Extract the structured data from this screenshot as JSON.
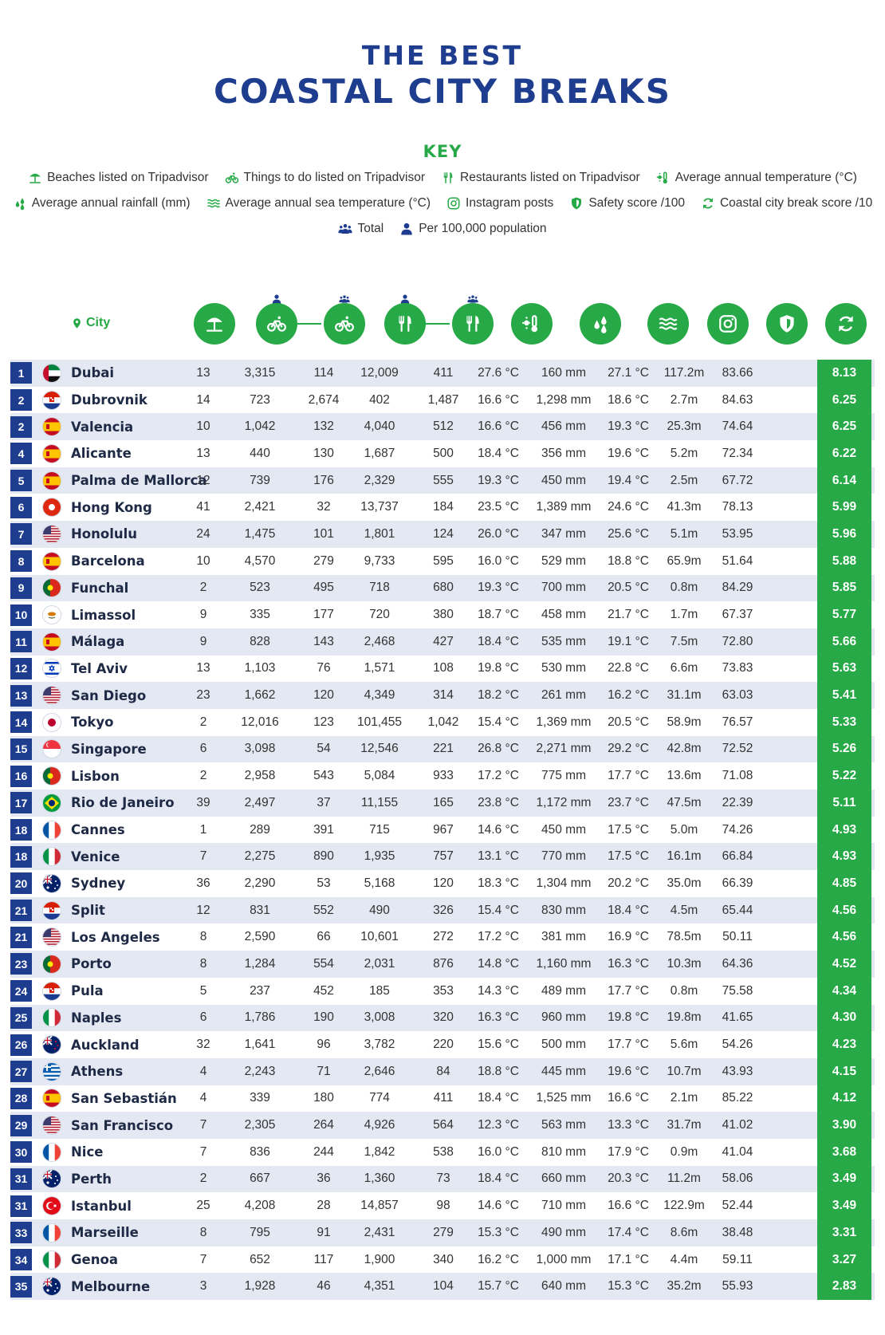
{
  "title": {
    "line1": "THE BEST",
    "line2": "COASTAL CITY BREAKS"
  },
  "key": {
    "title": "KEY",
    "items": [
      {
        "icon": "beach-umbrella-icon",
        "label": "Beaches listed on Tripadvisor"
      },
      {
        "icon": "bicycle-icon",
        "label": "Things to do listed on Tripadvisor"
      },
      {
        "icon": "cutlery-icon",
        "label": "Restaurants listed on Tripadvisor"
      },
      {
        "icon": "thermometer-sun-icon",
        "label": "Average annual temperature (°C)"
      },
      {
        "icon": "raindrops-icon",
        "label": "Average annual rainfall (mm)"
      },
      {
        "icon": "waves-icon",
        "label": "Average annual sea temperature (°C)"
      },
      {
        "icon": "instagram-icon",
        "label": "Instagram posts"
      },
      {
        "icon": "shield-icon",
        "label": "Safety score /100"
      },
      {
        "icon": "refresh-icon",
        "label": "Coastal city break score /10"
      },
      {
        "icon": "group-icon",
        "label": "Total"
      },
      {
        "icon": "person-icon",
        "label": "Per 100,000 population"
      }
    ]
  },
  "header": {
    "city_label": "City"
  },
  "colors": {
    "brand_blue": "#1e3d8f",
    "accent_green": "#26a946",
    "row_alt": "#e3e8f2"
  },
  "rows": [
    {
      "rank": "1",
      "flag": "uae",
      "city": "Dubai",
      "beaches": "13",
      "todo_pc": "3,315",
      "todo_total": "114",
      "rest_pc": "12,009",
      "rest_total": "411",
      "temp": "27.6 °C",
      "rain": "160 mm",
      "sea": "27.1 °C",
      "insta": "117.2m",
      "safety": "83.66",
      "score": "8.13"
    },
    {
      "rank": "2",
      "flag": "croatia",
      "city": "Dubrovnik",
      "beaches": "14",
      "todo_pc": "723",
      "todo_total": "2,674",
      "rest_pc": "402",
      "rest_total": "1,487",
      "temp": "16.6 °C",
      "rain": "1,298 mm",
      "sea": "18.6 °C",
      "insta": "2.7m",
      "safety": "84.63",
      "score": "6.25"
    },
    {
      "rank": "2",
      "flag": "spain",
      "city": "Valencia",
      "beaches": "10",
      "todo_pc": "1,042",
      "todo_total": "132",
      "rest_pc": "4,040",
      "rest_total": "512",
      "temp": "16.6 °C",
      "rain": "456 mm",
      "sea": "19.3 °C",
      "insta": "25.3m",
      "safety": "74.64",
      "score": "6.25"
    },
    {
      "rank": "4",
      "flag": "spain",
      "city": "Alicante",
      "beaches": "13",
      "todo_pc": "440",
      "todo_total": "130",
      "rest_pc": "1,687",
      "rest_total": "500",
      "temp": "18.4 °C",
      "rain": "356 mm",
      "sea": "19.6 °C",
      "insta": "5.2m",
      "safety": "72.34",
      "score": "6.22"
    },
    {
      "rank": "5",
      "flag": "spain",
      "city": "Palma de Mallorca",
      "beaches": "12",
      "todo_pc": "739",
      "todo_total": "176",
      "rest_pc": "2,329",
      "rest_total": "555",
      "temp": "19.3 °C",
      "rain": "450 mm",
      "sea": "19.4 °C",
      "insta": "2.5m",
      "safety": "67.72",
      "score": "6.14"
    },
    {
      "rank": "6",
      "flag": "hongkong",
      "city": "Hong Kong",
      "beaches": "41",
      "todo_pc": "2,421",
      "todo_total": "32",
      "rest_pc": "13,737",
      "rest_total": "184",
      "temp": "23.5 °C",
      "rain": "1,389 mm",
      "sea": "24.6 °C",
      "insta": "41.3m",
      "safety": "78.13",
      "score": "5.99"
    },
    {
      "rank": "7",
      "flag": "usa",
      "city": "Honolulu",
      "beaches": "24",
      "todo_pc": "1,475",
      "todo_total": "101",
      "rest_pc": "1,801",
      "rest_total": "124",
      "temp": "26.0 °C",
      "rain": "347 mm",
      "sea": "25.6 °C",
      "insta": "5.1m",
      "safety": "53.95",
      "score": "5.96"
    },
    {
      "rank": "8",
      "flag": "spain",
      "city": "Barcelona",
      "beaches": "10",
      "todo_pc": "4,570",
      "todo_total": "279",
      "rest_pc": "9,733",
      "rest_total": "595",
      "temp": "16.0 °C",
      "rain": "529 mm",
      "sea": "18.8 °C",
      "insta": "65.9m",
      "safety": "51.64",
      "score": "5.88"
    },
    {
      "rank": "9",
      "flag": "portugal",
      "city": "Funchal",
      "beaches": "2",
      "todo_pc": "523",
      "todo_total": "495",
      "rest_pc": "718",
      "rest_total": "680",
      "temp": "19.3 °C",
      "rain": "700 mm",
      "sea": "20.5 °C",
      "insta": "0.8m",
      "safety": "84.29",
      "score": "5.85"
    },
    {
      "rank": "10",
      "flag": "cyprus",
      "city": "Limassol",
      "beaches": "9",
      "todo_pc": "335",
      "todo_total": "177",
      "rest_pc": "720",
      "rest_total": "380",
      "temp": "18.7 °C",
      "rain": "458 mm",
      "sea": "21.7 °C",
      "insta": "1.7m",
      "safety": "67.37",
      "score": "5.77"
    },
    {
      "rank": "11",
      "flag": "spain",
      "city": "Málaga",
      "beaches": "9",
      "todo_pc": "828",
      "todo_total": "143",
      "rest_pc": "2,468",
      "rest_total": "427",
      "temp": "18.4 °C",
      "rain": "535 mm",
      "sea": "19.1 °C",
      "insta": "7.5m",
      "safety": "72.80",
      "score": "5.66"
    },
    {
      "rank": "12",
      "flag": "israel",
      "city": "Tel Aviv",
      "beaches": "13",
      "todo_pc": "1,103",
      "todo_total": "76",
      "rest_pc": "1,571",
      "rest_total": "108",
      "temp": "19.8 °C",
      "rain": "530 mm",
      "sea": "22.8 °C",
      "insta": "6.6m",
      "safety": "73.83",
      "score": "5.63"
    },
    {
      "rank": "13",
      "flag": "usa",
      "city": "San Diego",
      "beaches": "23",
      "todo_pc": "1,662",
      "todo_total": "120",
      "rest_pc": "4,349",
      "rest_total": "314",
      "temp": "18.2 °C",
      "rain": "261 mm",
      "sea": "16.2 °C",
      "insta": "31.1m",
      "safety": "63.03",
      "score": "5.41"
    },
    {
      "rank": "14",
      "flag": "japan",
      "city": "Tokyo",
      "beaches": "2",
      "todo_pc": "12,016",
      "todo_total": "123",
      "rest_pc": "101,455",
      "rest_total": "1,042",
      "temp": "15.4 °C",
      "rain": "1,369 mm",
      "sea": "20.5 °C",
      "insta": "58.9m",
      "safety": "76.57",
      "score": "5.33"
    },
    {
      "rank": "15",
      "flag": "singapore",
      "city": "Singapore",
      "beaches": "6",
      "todo_pc": "3,098",
      "todo_total": "54",
      "rest_pc": "12,546",
      "rest_total": "221",
      "temp": "26.8 °C",
      "rain": "2,271 mm",
      "sea": "29.2 °C",
      "insta": "42.8m",
      "safety": "72.52",
      "score": "5.26"
    },
    {
      "rank": "16",
      "flag": "portugal",
      "city": "Lisbon",
      "beaches": "2",
      "todo_pc": "2,958",
      "todo_total": "543",
      "rest_pc": "5,084",
      "rest_total": "933",
      "temp": "17.2 °C",
      "rain": "775 mm",
      "sea": "17.7 °C",
      "insta": "13.6m",
      "safety": "71.08",
      "score": "5.22"
    },
    {
      "rank": "17",
      "flag": "brazil",
      "city": "Rio de Janeiro",
      "beaches": "39",
      "todo_pc": "2,497",
      "todo_total": "37",
      "rest_pc": "11,155",
      "rest_total": "165",
      "temp": "23.8 °C",
      "rain": "1,172 mm",
      "sea": "23.7 °C",
      "insta": "47.5m",
      "safety": "22.39",
      "score": "5.11"
    },
    {
      "rank": "18",
      "flag": "france",
      "city": "Cannes",
      "beaches": "1",
      "todo_pc": "289",
      "todo_total": "391",
      "rest_pc": "715",
      "rest_total": "967",
      "temp": "14.6 °C",
      "rain": "450 mm",
      "sea": "17.5 °C",
      "insta": "5.0m",
      "safety": "74.26",
      "score": "4.93"
    },
    {
      "rank": "18",
      "flag": "italy",
      "city": "Venice",
      "beaches": "7",
      "todo_pc": "2,275",
      "todo_total": "890",
      "rest_pc": "1,935",
      "rest_total": "757",
      "temp": "13.1 °C",
      "rain": "770 mm",
      "sea": "17.5 °C",
      "insta": "16.1m",
      "safety": "66.84",
      "score": "4.93"
    },
    {
      "rank": "20",
      "flag": "australia",
      "city": "Sydney",
      "beaches": "36",
      "todo_pc": "2,290",
      "todo_total": "53",
      "rest_pc": "5,168",
      "rest_total": "120",
      "temp": "18.3 °C",
      "rain": "1,304 mm",
      "sea": "20.2 °C",
      "insta": "35.0m",
      "safety": "66.39",
      "score": "4.85"
    },
    {
      "rank": "21",
      "flag": "croatia",
      "city": "Split",
      "beaches": "12",
      "todo_pc": "831",
      "todo_total": "552",
      "rest_pc": "490",
      "rest_total": "326",
      "temp": "15.4 °C",
      "rain": "830 mm",
      "sea": "18.4 °C",
      "insta": "4.5m",
      "safety": "65.44",
      "score": "4.56"
    },
    {
      "rank": "21",
      "flag": "usa",
      "city": "Los Angeles",
      "beaches": "8",
      "todo_pc": "2,590",
      "todo_total": "66",
      "rest_pc": "10,601",
      "rest_total": "272",
      "temp": "17.2 °C",
      "rain": "381 mm",
      "sea": "16.9 °C",
      "insta": "78.5m",
      "safety": "50.11",
      "score": "4.56"
    },
    {
      "rank": "23",
      "flag": "portugal",
      "city": "Porto",
      "beaches": "8",
      "todo_pc": "1,284",
      "todo_total": "554",
      "rest_pc": "2,031",
      "rest_total": "876",
      "temp": "14.8 °C",
      "rain": "1,160 mm",
      "sea": "16.3 °C",
      "insta": "10.3m",
      "safety": "64.36",
      "score": "4.52"
    },
    {
      "rank": "24",
      "flag": "croatia",
      "city": "Pula",
      "beaches": "5",
      "todo_pc": "237",
      "todo_total": "452",
      "rest_pc": "185",
      "rest_total": "353",
      "temp": "14.3 °C",
      "rain": "489 mm",
      "sea": "17.7 °C",
      "insta": "0.8m",
      "safety": "75.58",
      "score": "4.34"
    },
    {
      "rank": "25",
      "flag": "italy",
      "city": "Naples",
      "beaches": "6",
      "todo_pc": "1,786",
      "todo_total": "190",
      "rest_pc": "3,008",
      "rest_total": "320",
      "temp": "16.3 °C",
      "rain": "960 mm",
      "sea": "19.8 °C",
      "insta": "19.8m",
      "safety": "41.65",
      "score": "4.30"
    },
    {
      "rank": "26",
      "flag": "newzealand",
      "city": "Auckland",
      "beaches": "32",
      "todo_pc": "1,641",
      "todo_total": "96",
      "rest_pc": "3,782",
      "rest_total": "220",
      "temp": "15.6 °C",
      "rain": "500 mm",
      "sea": "17.7 °C",
      "insta": "5.6m",
      "safety": "54.26",
      "score": "4.23"
    },
    {
      "rank": "27",
      "flag": "greece",
      "city": "Athens",
      "beaches": "4",
      "todo_pc": "2,243",
      "todo_total": "71",
      "rest_pc": "2,646",
      "rest_total": "84",
      "temp": "18.8 °C",
      "rain": "445 mm",
      "sea": "19.6 °C",
      "insta": "10.7m",
      "safety": "43.93",
      "score": "4.15"
    },
    {
      "rank": "28",
      "flag": "spain",
      "city": "San Sebastián",
      "beaches": "4",
      "todo_pc": "339",
      "todo_total": "180",
      "rest_pc": "774",
      "rest_total": "411",
      "temp": "18.4 °C",
      "rain": "1,525 mm",
      "sea": "16.6 °C",
      "insta": "2.1m",
      "safety": "85.22",
      "score": "4.12"
    },
    {
      "rank": "29",
      "flag": "usa",
      "city": "San Francisco",
      "beaches": "7",
      "todo_pc": "2,305",
      "todo_total": "264",
      "rest_pc": "4,926",
      "rest_total": "564",
      "temp": "12.3 °C",
      "rain": "563 mm",
      "sea": "13.3 °C",
      "insta": "31.7m",
      "safety": "41.02",
      "score": "3.90"
    },
    {
      "rank": "30",
      "flag": "france",
      "city": "Nice",
      "beaches": "7",
      "todo_pc": "836",
      "todo_total": "244",
      "rest_pc": "1,842",
      "rest_total": "538",
      "temp": "16.0 °C",
      "rain": "810 mm",
      "sea": "17.9 °C",
      "insta": "0.9m",
      "safety": "41.04",
      "score": "3.68"
    },
    {
      "rank": "31",
      "flag": "australia",
      "city": "Perth",
      "beaches": "2",
      "todo_pc": "667",
      "todo_total": "36",
      "rest_pc": "1,360",
      "rest_total": "73",
      "temp": "18.4 °C",
      "rain": "660 mm",
      "sea": "20.3 °C",
      "insta": "11.2m",
      "safety": "58.06",
      "score": "3.49"
    },
    {
      "rank": "31",
      "flag": "turkey",
      "city": "Istanbul",
      "beaches": "25",
      "todo_pc": "4,208",
      "todo_total": "28",
      "rest_pc": "14,857",
      "rest_total": "98",
      "temp": "14.6 °C",
      "rain": "710 mm",
      "sea": "16.6 °C",
      "insta": "122.9m",
      "safety": "52.44",
      "score": "3.49"
    },
    {
      "rank": "33",
      "flag": "france",
      "city": "Marseille",
      "beaches": "8",
      "todo_pc": "795",
      "todo_total": "91",
      "rest_pc": "2,431",
      "rest_total": "279",
      "temp": "15.3 °C",
      "rain": "490 mm",
      "sea": "17.4 °C",
      "insta": "8.6m",
      "safety": "38.48",
      "score": "3.31"
    },
    {
      "rank": "34",
      "flag": "italy",
      "city": "Genoa",
      "beaches": "7",
      "todo_pc": "652",
      "todo_total": "117",
      "rest_pc": "1,900",
      "rest_total": "340",
      "temp": "16.2 °C",
      "rain": "1,000 mm",
      "sea": "17.1 °C",
      "insta": "4.4m",
      "safety": "59.11",
      "score": "3.27"
    },
    {
      "rank": "35",
      "flag": "australia",
      "city": "Melbourne",
      "beaches": "3",
      "todo_pc": "1,928",
      "todo_total": "46",
      "rest_pc": "4,351",
      "rest_total": "104",
      "temp": "15.7 °C",
      "rain": "640 mm",
      "sea": "15.3 °C",
      "insta": "35.2m",
      "safety": "55.93",
      "score": "2.83"
    }
  ]
}
